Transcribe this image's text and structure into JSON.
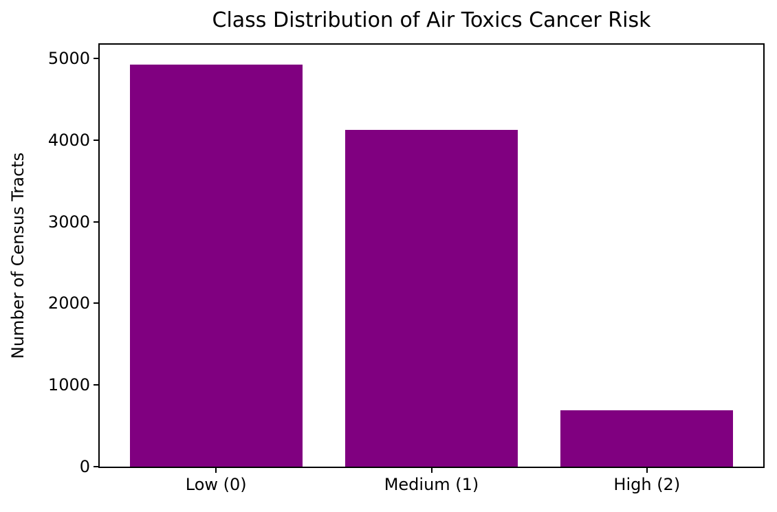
{
  "chart_data": {
    "type": "bar",
    "title": "Class Distribution of Air Toxics Cancer Risk",
    "xlabel": "",
    "ylabel": "Number of Census Tracts",
    "categories": [
      "Low (0)",
      "Medium (1)",
      "High (2)"
    ],
    "values": [
      4920,
      4120,
      690
    ],
    "yticks": [
      0,
      1000,
      2000,
      3000,
      4000,
      5000
    ],
    "ylim": [
      0,
      5167
    ],
    "bar_color": "#800080",
    "axis_color": "#000000",
    "background_color": "#ffffff",
    "grid": false,
    "legend": "none"
  }
}
